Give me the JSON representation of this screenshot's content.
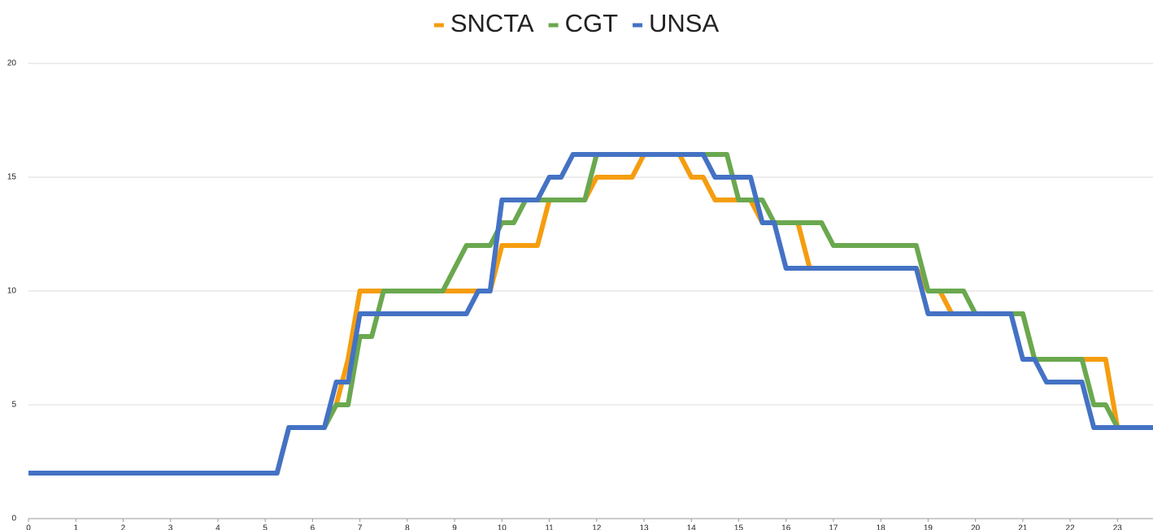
{
  "chart_data": {
    "type": "line",
    "x": [
      0,
      0.25,
      0.5,
      0.75,
      1,
      1.25,
      1.5,
      1.75,
      2,
      2.25,
      2.5,
      2.75,
      3,
      3.25,
      3.5,
      3.75,
      4,
      4.25,
      4.5,
      4.75,
      5,
      5.25,
      5.5,
      5.75,
      6,
      6.25,
      6.5,
      6.75,
      7,
      7.25,
      7.5,
      7.75,
      8,
      8.25,
      8.5,
      8.75,
      9,
      9.25,
      9.5,
      9.75,
      10,
      10.25,
      10.5,
      10.75,
      11,
      11.25,
      11.5,
      11.75,
      12,
      12.25,
      12.5,
      12.75,
      13,
      13.25,
      13.5,
      13.75,
      14,
      14.25,
      14.5,
      14.75,
      15,
      15.25,
      15.5,
      15.75,
      16,
      16.25,
      16.5,
      16.75,
      17,
      17.25,
      17.5,
      17.75,
      18,
      18.25,
      18.5,
      18.75,
      19,
      19.25,
      19.5,
      19.75,
      20,
      20.25,
      20.5,
      20.75,
      21,
      21.25,
      21.5,
      21.75,
      22,
      22.25,
      22.5,
      22.75,
      23,
      23.25,
      23.5,
      23.75
    ],
    "series": [
      {
        "name": "SNCTA",
        "color": "#f59d0f",
        "values": [
          2,
          2,
          2,
          2,
          2,
          2,
          2,
          2,
          2,
          2,
          2,
          2,
          2,
          2,
          2,
          2,
          2,
          2,
          2,
          2,
          2,
          2,
          4,
          4,
          4,
          4,
          5,
          7,
          10,
          10,
          10,
          10,
          10,
          10,
          10,
          10,
          10,
          10,
          10,
          10,
          12,
          12,
          12,
          12,
          14,
          14,
          14,
          14,
          15,
          15,
          15,
          15,
          16,
          16,
          16,
          16,
          15,
          15,
          14,
          14,
          14,
          14,
          13,
          13,
          13,
          13,
          11,
          11,
          11,
          11,
          11,
          11,
          11,
          11,
          11,
          11,
          10,
          10,
          9,
          9,
          9,
          9,
          9,
          9,
          9,
          7,
          7,
          7,
          7,
          7,
          7,
          7,
          4,
          4,
          4,
          4
        ]
      },
      {
        "name": "CGT",
        "color": "#6aa84f",
        "values": [
          2,
          2,
          2,
          2,
          2,
          2,
          2,
          2,
          2,
          2,
          2,
          2,
          2,
          2,
          2,
          2,
          2,
          2,
          2,
          2,
          2,
          2,
          4,
          4,
          4,
          4,
          5,
          5,
          8,
          8,
          10,
          10,
          10,
          10,
          10,
          10,
          11,
          12,
          12,
          12,
          13,
          13,
          14,
          14,
          14,
          14,
          14,
          14,
          16,
          16,
          16,
          16,
          16,
          16,
          16,
          16,
          16,
          16,
          16,
          16,
          14,
          14,
          14,
          13,
          13,
          13,
          13,
          13,
          12,
          12,
          12,
          12,
          12,
          12,
          12,
          12,
          10,
          10,
          10,
          10,
          9,
          9,
          9,
          9,
          9,
          7,
          7,
          7,
          7,
          7,
          5,
          5,
          4,
          4,
          4,
          4
        ]
      },
      {
        "name": "UNSA",
        "color": "#4472c4",
        "values": [
          2,
          2,
          2,
          2,
          2,
          2,
          2,
          2,
          2,
          2,
          2,
          2,
          2,
          2,
          2,
          2,
          2,
          2,
          2,
          2,
          2,
          2,
          4,
          4,
          4,
          4,
          6,
          6,
          9,
          9,
          9,
          9,
          9,
          9,
          9,
          9,
          9,
          9,
          10,
          10,
          14,
          14,
          14,
          14,
          15,
          15,
          16,
          16,
          16,
          16,
          16,
          16,
          16,
          16,
          16,
          16,
          16,
          16,
          15,
          15,
          15,
          15,
          13,
          13,
          11,
          11,
          11,
          11,
          11,
          11,
          11,
          11,
          11,
          11,
          11,
          11,
          9,
          9,
          9,
          9,
          9,
          9,
          9,
          9,
          7,
          7,
          6,
          6,
          6,
          6,
          4,
          4,
          4,
          4,
          4,
          4
        ]
      }
    ],
    "xlim": [
      0,
      23.75
    ],
    "xticks": [
      0,
      1,
      2,
      3,
      4,
      5,
      6,
      7,
      8,
      9,
      10,
      11,
      12,
      13,
      14,
      15,
      16,
      17,
      18,
      19,
      20,
      21,
      22,
      23
    ],
    "ylim": [
      0,
      20
    ],
    "yticks": [
      0,
      5,
      10,
      15,
      20
    ],
    "grid": true,
    "legend": "top"
  }
}
